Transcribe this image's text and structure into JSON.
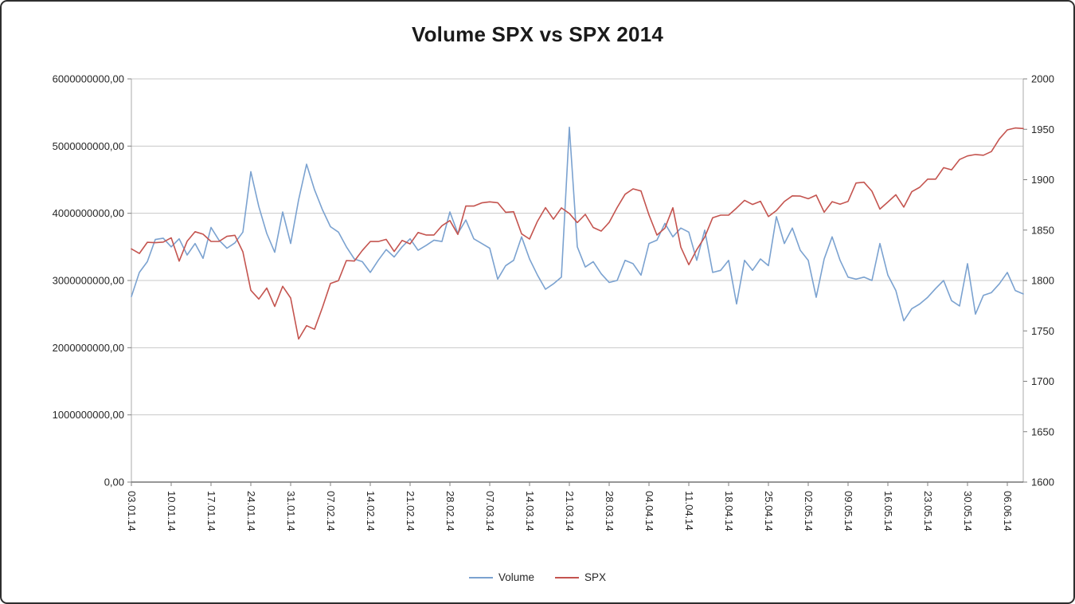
{
  "chart_data": {
    "type": "line",
    "title": "Volume SPX vs SPX 2014",
    "legend_position": "bottom",
    "gridlines": "horizontal",
    "left_axis": {
      "min": 0,
      "max": 6000000000,
      "step": 1000000000,
      "tick_labels": [
        "6000000000,00",
        "5000000000,00",
        "4000000000,00",
        "3000000000,00",
        "2000000000,00",
        "1000000000,00",
        "0,00"
      ]
    },
    "right_axis": {
      "min": 1600,
      "max": 2000,
      "step": 50,
      "tick_labels": [
        "2000",
        "1950",
        "1900",
        "1850",
        "1800",
        "1750",
        "1700",
        "1650",
        "1600"
      ]
    },
    "x_axis": {
      "tick_interval": 5,
      "tick_labels": [
        "03.01.14",
        "10.01.14",
        "17.01.14",
        "24.01.14",
        "31.01.14",
        "07.02.14",
        "14.02.14",
        "21.02.14",
        "28.02.14",
        "07.03.14",
        "14.03.14",
        "21.03.14",
        "28.03.14",
        "04.04.14",
        "11.04.14",
        "18.04.14",
        "25.04.14",
        "02.05.14",
        "09.05.14",
        "16.05.14",
        "23.05.14",
        "30.05.14",
        "06.06.14"
      ]
    },
    "x": [
      "03.01.14",
      "06.01.14",
      "07.01.14",
      "08.01.14",
      "09.01.14",
      "10.01.14",
      "13.01.14",
      "14.01.14",
      "15.01.14",
      "16.01.14",
      "17.01.14",
      "20.01.14",
      "21.01.14",
      "22.01.14",
      "23.01.14",
      "24.01.14",
      "27.01.14",
      "28.01.14",
      "29.01.14",
      "30.01.14",
      "31.01.14",
      "03.02.14",
      "04.02.14",
      "05.02.14",
      "06.02.14",
      "07.02.14",
      "10.02.14",
      "11.02.14",
      "12.02.14",
      "13.02.14",
      "14.02.14",
      "17.02.14",
      "18.02.14",
      "19.02.14",
      "20.02.14",
      "21.02.14",
      "24.02.14",
      "25.02.14",
      "26.02.14",
      "27.02.14",
      "28.02.14",
      "03.03.14",
      "04.03.14",
      "05.03.14",
      "06.03.14",
      "07.03.14",
      "10.03.14",
      "11.03.14",
      "12.03.14",
      "13.03.14",
      "14.03.14",
      "17.03.14",
      "18.03.14",
      "19.03.14",
      "20.03.14",
      "21.03.14",
      "24.03.14",
      "25.03.14",
      "26.03.14",
      "27.03.14",
      "28.03.14",
      "31.03.14",
      "01.04.14",
      "02.04.14",
      "03.04.14",
      "04.04.14",
      "07.04.14",
      "08.04.14",
      "09.04.14",
      "10.04.14",
      "11.04.14",
      "14.04.14",
      "15.04.14",
      "16.04.14",
      "17.04.14",
      "18.04.14",
      "21.04.14",
      "22.04.14",
      "23.04.14",
      "24.04.14",
      "25.04.14",
      "28.04.14",
      "29.04.14",
      "30.04.14",
      "01.05.14",
      "02.05.14",
      "05.05.14",
      "06.05.14",
      "07.05.14",
      "08.05.14",
      "09.05.14",
      "12.05.14",
      "13.05.14",
      "14.05.14",
      "15.05.14",
      "16.05.14",
      "19.05.14",
      "20.05.14",
      "21.05.14",
      "22.05.14",
      "23.05.14",
      "26.05.14",
      "27.05.14",
      "28.05.14",
      "29.05.14",
      "30.05.14",
      "02.06.14",
      "03.06.14",
      "04.06.14",
      "05.06.14",
      "06.06.14",
      "09.06.14",
      "10.06.14"
    ],
    "series": [
      {
        "name": "Volume",
        "axis": "left",
        "color": "#7BA2D0",
        "values": [
          2760000000,
          3120000000,
          3280000000,
          3610000000,
          3630000000,
          3500000000,
          3620000000,
          3380000000,
          3550000000,
          3330000000,
          3790000000,
          3600000000,
          3480000000,
          3560000000,
          3720000000,
          4620000000,
          4100000000,
          3700000000,
          3420000000,
          4020000000,
          3550000000,
          4200000000,
          4730000000,
          4350000000,
          4050000000,
          3800000000,
          3720000000,
          3500000000,
          3320000000,
          3280000000,
          3120000000,
          3300000000,
          3460000000,
          3350000000,
          3500000000,
          3620000000,
          3450000000,
          3520000000,
          3600000000,
          3580000000,
          4020000000,
          3700000000,
          3900000000,
          3620000000,
          3550000000,
          3480000000,
          3020000000,
          3220000000,
          3300000000,
          3650000000,
          3320000000,
          3080000000,
          2870000000,
          2950000000,
          3050000000,
          5280000000,
          3500000000,
          3200000000,
          3280000000,
          3100000000,
          2970000000,
          3000000000,
          3300000000,
          3250000000,
          3080000000,
          3550000000,
          3600000000,
          3850000000,
          3650000000,
          3780000000,
          3720000000,
          3300000000,
          3750000000,
          3120000000,
          3150000000,
          3300000000,
          2650000000,
          3300000000,
          3150000000,
          3320000000,
          3220000000,
          3950000000,
          3550000000,
          3780000000,
          3450000000,
          3300000000,
          2750000000,
          3320000000,
          3650000000,
          3300000000,
          3050000000,
          3020000000,
          3050000000,
          3000000000,
          3550000000,
          3080000000,
          2850000000,
          2400000000,
          2580000000,
          2650000000,
          2750000000,
          2880000000,
          3000000000,
          2700000000,
          2620000000,
          3250000000,
          2500000000,
          2780000000,
          2820000000,
          2950000000,
          3120000000,
          2850000000,
          2800000000
        ]
      },
      {
        "name": "SPX",
        "axis": "right",
        "color": "#C4544F",
        "values": [
          1831.37,
          1826.77,
          1837.88,
          1837.49,
          1838.13,
          1842.37,
          1819.2,
          1838.88,
          1848.38,
          1845.89,
          1838.7,
          1838.7,
          1843.8,
          1844.86,
          1828.46,
          1790.29,
          1781.56,
          1792.5,
          1774.2,
          1794.19,
          1782.59,
          1741.89,
          1755.2,
          1751.64,
          1773.43,
          1797.02,
          1799.84,
          1819.75,
          1819.26,
          1829.83,
          1838.63,
          1838.63,
          1840.76,
          1828.75,
          1839.78,
          1836.25,
          1847.61,
          1845.12,
          1845.16,
          1854.29,
          1859.45,
          1845.73,
          1873.91,
          1873.81,
          1877.03,
          1878.04,
          1877.17,
          1867.63,
          1868.2,
          1846.34,
          1841.13,
          1858.83,
          1872.25,
          1860.77,
          1872.01,
          1866.52,
          1857.44,
          1865.62,
          1852.56,
          1849.04,
          1857.62,
          1872.34,
          1885.52,
          1890.9,
          1888.77,
          1865.09,
          1845.04,
          1851.96,
          1872.18,
          1833.08,
          1815.69,
          1830.61,
          1842.98,
          1862.31,
          1864.85,
          1864.85,
          1871.89,
          1879.55,
          1875.39,
          1878.61,
          1863.4,
          1869.43,
          1878.33,
          1883.95,
          1883.68,
          1881.14,
          1884.66,
          1867.72,
          1878.21,
          1875.63,
          1878.48,
          1896.65,
          1897.45,
          1888.53,
          1870.85,
          1877.86,
          1885.08,
          1872.83,
          1888.03,
          1892.49,
          1900.53,
          1900.53,
          1911.91,
          1909.78,
          1920.03,
          1923.57,
          1924.97,
          1924.24,
          1927.88,
          1940.46,
          1949.44,
          1951.27,
          1950.79
        ]
      }
    ],
    "colors": {
      "volume_line": "#7BA2D0",
      "spx_line": "#C4544F",
      "gridline": "#C8C8C8",
      "axis_line": "#808080"
    }
  }
}
